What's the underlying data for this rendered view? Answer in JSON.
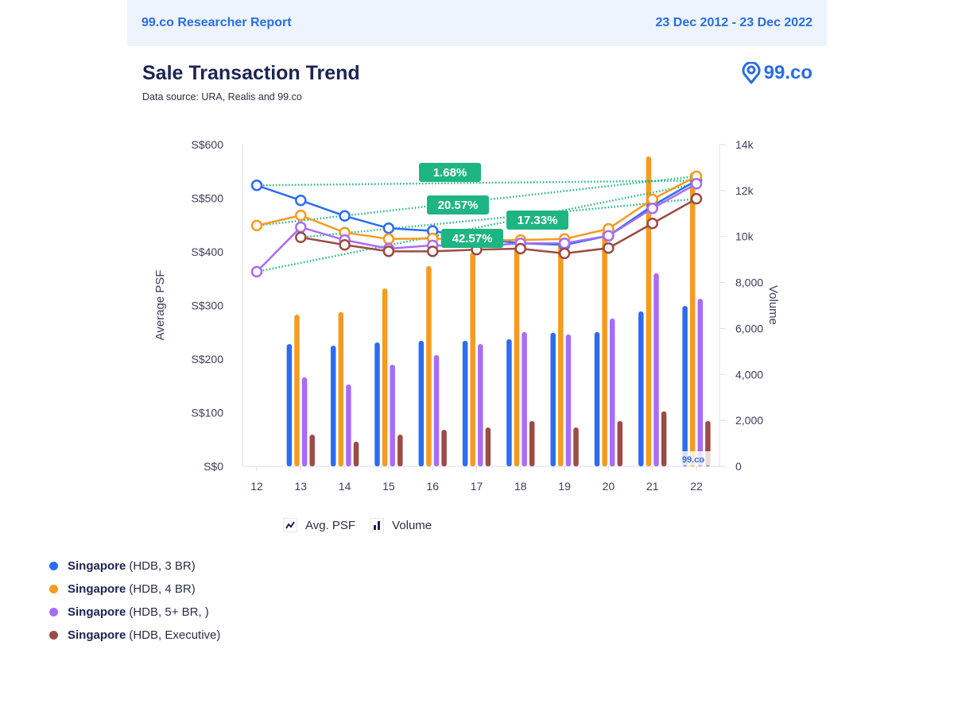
{
  "header": {
    "report_label": "99.co Researcher Report",
    "date_range": "23 Dec 2012 - 23 Dec 2022"
  },
  "title": "Sale Transaction Trend",
  "subtitle": "Data source: URA, Realis and 99.co",
  "logo_text": "99.co",
  "watermark_text": "99.co",
  "type_legend": [
    {
      "icon": "line-chart-icon",
      "label": "Avg. PSF"
    },
    {
      "icon": "bar-chart-icon",
      "label": "Volume"
    }
  ],
  "series_legend": [
    {
      "bold": "Singapore",
      "rest": "(HDB, 3 BR)",
      "color": "#2d6cf0"
    },
    {
      "bold": "Singapore",
      "rest": "(HDB, 4 BR)",
      "color": "#f59b1f"
    },
    {
      "bold": "Singapore",
      "rest": "(HDB, 5+ BR, )",
      "color": "#a86cf5"
    },
    {
      "bold": "Singapore",
      "rest": "(HDB, Executive)",
      "color": "#9c4b45"
    }
  ],
  "chart_data": {
    "type": "bar+line",
    "title": "Sale Transaction Trend",
    "categories": [
      "12",
      "13",
      "14",
      "15",
      "16",
      "17",
      "18",
      "19",
      "20",
      "21",
      "22"
    ],
    "xlabel": "",
    "ylabel_left": "Average PSF",
    "ylabel_right": "Volume",
    "ylim_left": [
      0,
      600
    ],
    "ylim_right": [
      0,
      14000
    ],
    "yticks_left": [
      "S$0",
      "S$100",
      "S$200",
      "S$300",
      "S$400",
      "S$500",
      "S$600"
    ],
    "yticks_right": [
      "0",
      "2,000",
      "4,000",
      "6,000",
      "8,000",
      "10k",
      "12k",
      "14k"
    ],
    "grid": false,
    "series": [
      {
        "name": "Singapore (HDB, 3 BR)",
        "color": "#2d6cf0",
        "psf": [
          524,
          496,
          467,
          444,
          439,
          425,
          416,
          413,
          430,
          486,
          533
        ],
        "volume": [
          null,
          5320,
          5250,
          5390,
          5460,
          5460,
          5530,
          5810,
          5840,
          6740,
          6980
        ],
        "trend_label": "1.68%"
      },
      {
        "name": "Singapore (HDB, 4 BR)",
        "color": "#f59b1f",
        "psf": [
          449,
          468,
          436,
          424,
          425,
          421,
          422,
          424,
          443,
          498,
          541
        ],
        "volume": [
          null,
          6600,
          6710,
          7740,
          8710,
          9300,
          9570,
          9780,
          10230,
          13480,
          12790
        ],
        "trend_label": "20.57%"
      },
      {
        "name": "Singapore (HDB, 5+ BR, )",
        "color": "#a86cf5",
        "psf": [
          363,
          446,
          422,
          406,
          412,
          410,
          416,
          416,
          430,
          481,
          527
        ],
        "volume": [
          null,
          3870,
          3560,
          4420,
          4840,
          5320,
          5840,
          5740,
          6430,
          8400,
          7290
        ],
        "trend_label": "42.57%"
      },
      {
        "name": "Singapore (HDB, Executive)",
        "color": "#9c4b45",
        "psf": [
          null,
          427,
          413,
          401,
          401,
          404,
          406,
          397,
          407,
          453,
          499
        ],
        "volume": [
          null,
          1380,
          1070,
          1380,
          1590,
          1690,
          1970,
          1690,
          1970,
          2390,
          1970
        ],
        "trend_label": "17.33%"
      }
    ],
    "trend_line_color": "#1fb583"
  }
}
